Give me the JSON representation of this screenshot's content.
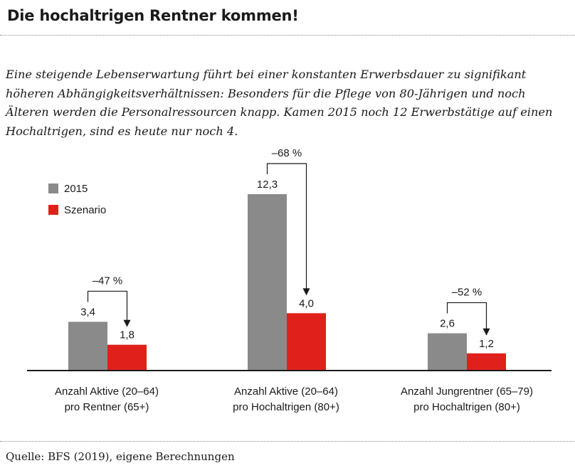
{
  "title": "Die hochaltrigen Rentner kommen!",
  "lead": "Eine steigende Lebenserwartung führt bei einer konstanten Erwerbsdauer zu signifikant höheren Abhängigkeitsverhältnissen: Besonders für die Pflege von 80-Jährigen und noch Älteren werden die Personalressourcen knapp. Kamen 2015 noch 12 Erwerbstätige auf einen Hochaltrigen, sind es heute nur noch 4.",
  "source": "Quelle: BFS (2019), eigene Berechnungen",
  "chart_data": {
    "type": "bar",
    "title": "",
    "xlabel": "",
    "ylabel": "",
    "ylim": [
      0,
      12.3
    ],
    "grid": false,
    "legend_placement": "top-left",
    "categories": [
      {
        "line1": "Anzahl Aktive (20–64)",
        "line2": "pro Rentner (65+)"
      },
      {
        "line1": "Anzahl Aktive (20–64)",
        "line2": "pro Hochaltrigen (80+)"
      },
      {
        "line1": "Anzahl Jungrentner (65–79)",
        "line2": "pro Hochaltrigen (80+)"
      }
    ],
    "series": [
      {
        "name": "2015",
        "color": "#8a8a8a",
        "values": [
          3.4,
          12.3,
          2.6
        ],
        "labels": [
          "3,4",
          "12,3",
          "2,6"
        ]
      },
      {
        "name": "Szenario",
        "color": "#e0211b",
        "values": [
          1.8,
          4.0,
          1.2
        ],
        "labels": [
          "1,8",
          "4,0",
          "1,2"
        ]
      }
    ],
    "changes": [
      "–47 %",
      "–68 %",
      "–52 %"
    ]
  }
}
